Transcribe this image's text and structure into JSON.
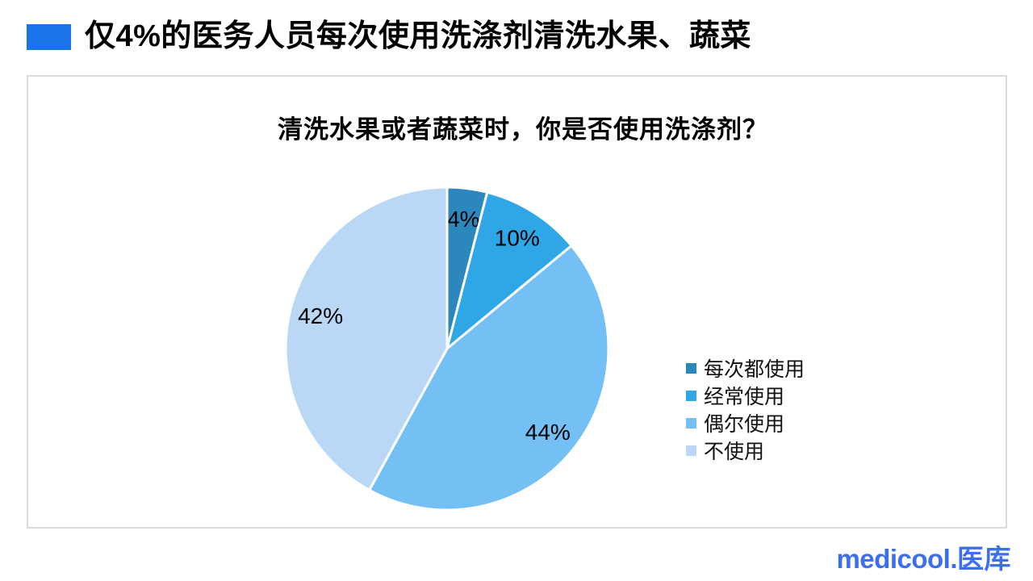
{
  "page": {
    "title": "仅4%的医务人员每次使用洗涤剂清洗水果、蔬菜",
    "accent_color": "#1A73E8"
  },
  "chart_data": {
    "type": "pie",
    "title": "清洗水果或者蔬菜时，你是否使用洗涤剂？",
    "categories": [
      "每次都使用",
      "经常使用",
      "偶尔使用",
      "不使用"
    ],
    "values": [
      4,
      10,
      44,
      42
    ],
    "slice_labels": [
      "4%",
      "10%",
      "44%",
      "42%"
    ],
    "colors": [
      "#2C87BC",
      "#2FA6E6",
      "#74C0F4",
      "#BAD8F6"
    ],
    "start_angle_deg": 0,
    "direction": "clockwise",
    "legend_position": "right",
    "slice_border_color": "#FFFFFF",
    "label_color": "#000000"
  },
  "footer": {
    "logo_latin": "medicool.",
    "logo_cjk": "医库",
    "logo_color": "#3B6EF2"
  }
}
